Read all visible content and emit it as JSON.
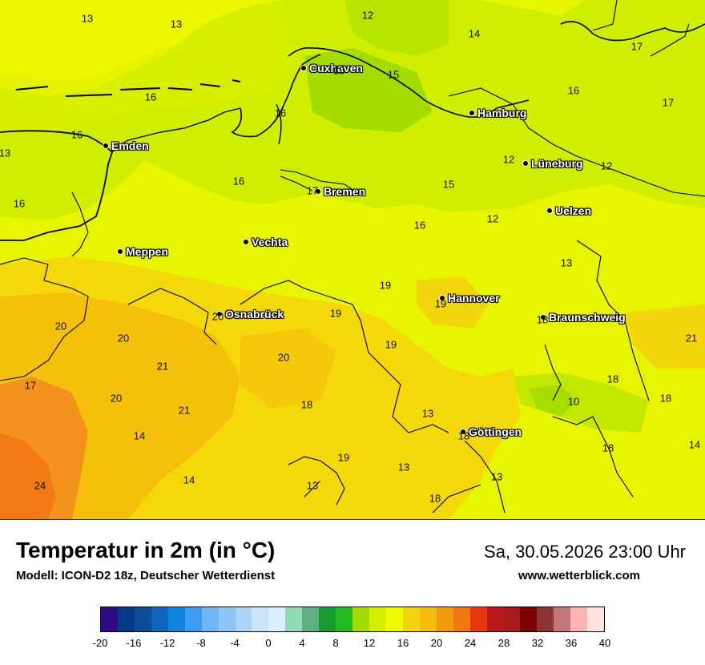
{
  "title": "Temperatur in 2m (in °C)",
  "model": "Modell: ICON-D2 18z, Deutscher Wetterdienst",
  "datetime": "Sa, 30.05.2026 23:00 Uhr",
  "website": "www.wetterblick.com",
  "cities": [
    "Cuxhaven",
    "Hamburg",
    "Emden",
    "Lüneburg",
    "Bremen",
    "Uelzen",
    "Vechta",
    "Meppen",
    "Hannover",
    "Osnabrück",
    "Braunschweig",
    "Göttingen"
  ],
  "temperature_labels": [
    "13",
    "13",
    "12",
    "14",
    "17",
    "15",
    "15",
    "16",
    "17",
    "16",
    "16",
    "13",
    "12",
    "16",
    "12",
    "16",
    "17",
    "15",
    "16",
    "12",
    "16",
    "13",
    "19",
    "19",
    "20",
    "19",
    "18",
    "20",
    "20",
    "21",
    "20",
    "19",
    "18",
    "21",
    "17",
    "20",
    "10",
    "18",
    "18",
    "21",
    "13",
    "18",
    "14",
    "24",
    "14",
    "18",
    "19",
    "13",
    "13",
    "13",
    "14",
    "18"
  ],
  "scale": {
    "colors": [
      "#2f0a86",
      "#073a8c",
      "#0b4d97",
      "#0e66ba",
      "#0f82e2",
      "#3a9cf2",
      "#6eb6f6",
      "#8cc5f7",
      "#a9d4f8",
      "#c8e4fb",
      "#dceefc",
      "#8fd9b4",
      "#5fae86",
      "#179c36",
      "#23bb21",
      "#a1dd00",
      "#d7ee00",
      "#f1f900",
      "#f4d60f",
      "#f5bb0c",
      "#f4990c",
      "#f27611",
      "#e7380b",
      "#b8191a",
      "#a81a1a",
      "#7b0000",
      "#8e3434",
      "#c47777",
      "#ffb3b3",
      "#ffe3e3"
    ],
    "ticks": [
      "-20",
      "-16",
      "-12",
      "-8",
      "-4",
      "0",
      "4",
      "8",
      "12",
      "16",
      "20",
      "24",
      "28",
      "32",
      "36",
      "40"
    ]
  }
}
